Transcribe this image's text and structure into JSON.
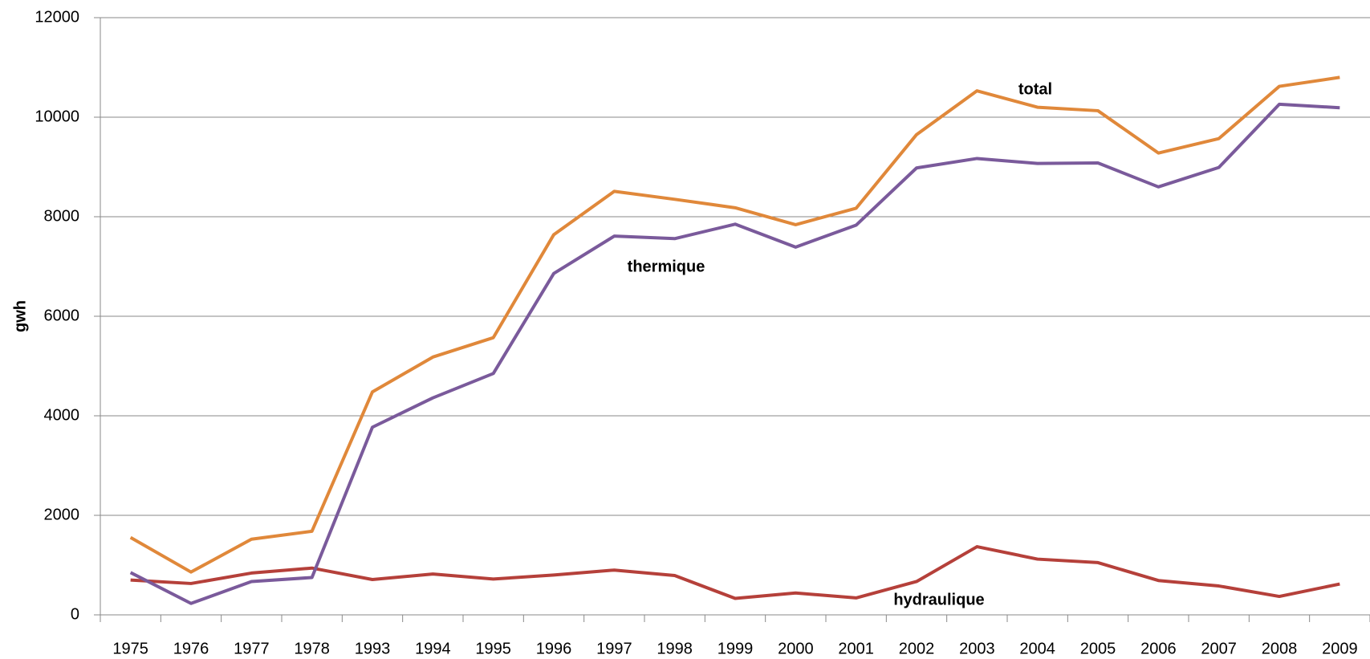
{
  "chart_data": {
    "type": "line",
    "y_label": "gwh",
    "categories": [
      "1975",
      "1976",
      "1977",
      "1978",
      "1993",
      "1994",
      "1995",
      "1996",
      "1997",
      "1998",
      "1999",
      "2000",
      "2001",
      "2002",
      "2003",
      "2004",
      "2005",
      "2006",
      "2007",
      "2008",
      "2009"
    ],
    "series": [
      {
        "name": "total",
        "color": "#e0883a",
        "values": [
          1555,
          860,
          1520,
          1680,
          4480,
          5180,
          5570,
          7640,
          8510,
          8350,
          8180,
          7840,
          8170,
          9650,
          10530,
          10200,
          10130,
          9280,
          9570,
          10620,
          10800
        ]
      },
      {
        "name": "thermique",
        "color": "#7a5a9b",
        "values": [
          850,
          230,
          670,
          750,
          3770,
          4360,
          4850,
          6860,
          7610,
          7560,
          7850,
          7390,
          7830,
          8980,
          9170,
          9070,
          9080,
          8600,
          8990,
          10260,
          10190
        ]
      },
      {
        "name": "hydraulique",
        "color": "#b5403a",
        "values": [
          700,
          630,
          840,
          940,
          710,
          820,
          720,
          800,
          900,
          790,
          330,
          440,
          340,
          670,
          1370,
          1120,
          1050,
          690,
          580,
          370,
          620
        ]
      }
    ],
    "ylim": [
      0,
      12000
    ],
    "yticks": [
      0,
      2000,
      4000,
      6000,
      8000,
      10000,
      12000
    ],
    "grid": true
  }
}
